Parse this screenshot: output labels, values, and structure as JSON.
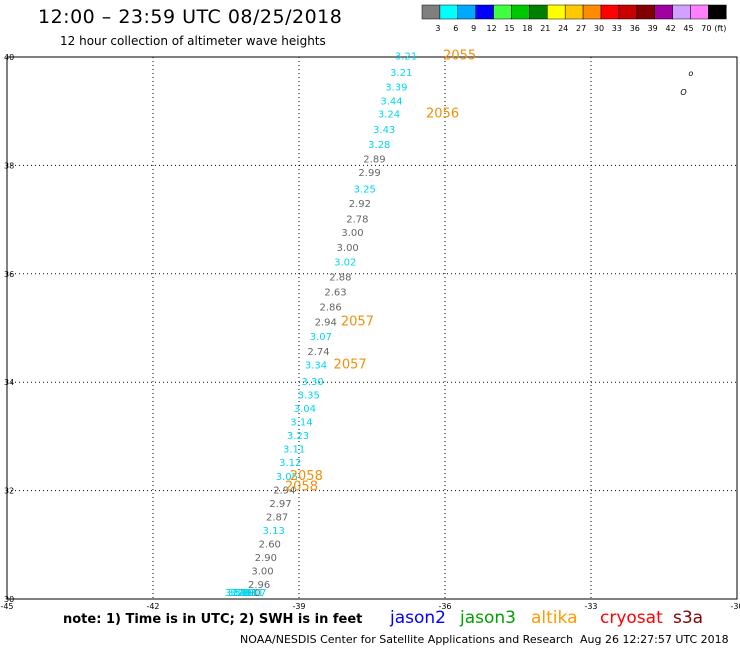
{
  "header": {
    "title": "12:00 – 23:59 UTC 08/25/2018",
    "subtitle": "12 hour collection of altimeter wave heights"
  },
  "colorbar": {
    "labels": [
      "3",
      "6",
      "9",
      "12",
      "15",
      "18",
      "21",
      "24",
      "27",
      "30",
      "33",
      "36",
      "39",
      "42",
      "45",
      "70",
      "(ft)"
    ],
    "colors": [
      "#7f7f7f",
      "#00ffff",
      "#00a8ff",
      "#0000ff",
      "#40ff40",
      "#00c800",
      "#008000",
      "#ffff00",
      "#ffc800",
      "#ff8c00",
      "#ff0000",
      "#c80000",
      "#800000",
      "#a000a0",
      "#d2a0ff",
      "#ff80ff",
      "#000000"
    ]
  },
  "chart_data": {
    "type": "scatter",
    "title": "12:00 – 23:59 UTC 08/25/2018",
    "subtitle": "12 hour collection of altimeter wave heights",
    "xlim": [
      -45,
      -30
    ],
    "ylim": [
      30,
      40
    ],
    "x_ticks": [
      "-45",
      "-42",
      "-39",
      "-36",
      "-33",
      "-30"
    ],
    "y_ticks": [
      "30",
      "32",
      "34",
      "36",
      "38",
      "40"
    ],
    "grid": true,
    "points": [
      {
        "lon": -36.8,
        "lat": 39.95,
        "swh": "3.21",
        "sat": "jason2"
      },
      {
        "lon": -36.9,
        "lat": 39.65,
        "swh": "3.21",
        "sat": "jason2"
      },
      {
        "lon": -37.0,
        "lat": 39.38,
        "swh": "3.39",
        "sat": "jason2"
      },
      {
        "lon": -37.1,
        "lat": 39.12,
        "swh": "3.44",
        "sat": "jason2"
      },
      {
        "lon": -37.15,
        "lat": 38.88,
        "swh": "3.24",
        "sat": "jason2"
      },
      {
        "lon": -37.25,
        "lat": 38.6,
        "swh": "3.43",
        "sat": "jason2"
      },
      {
        "lon": -37.35,
        "lat": 38.32,
        "swh": "3.28",
        "sat": "jason2"
      },
      {
        "lon": -37.45,
        "lat": 38.05,
        "swh": "2.89",
        "sat": "jason3"
      },
      {
        "lon": -37.55,
        "lat": 37.8,
        "swh": "2.99",
        "sat": "jason3"
      },
      {
        "lon": -37.65,
        "lat": 37.5,
        "swh": "3.25",
        "sat": "jason2"
      },
      {
        "lon": -37.75,
        "lat": 37.23,
        "swh": "2.92",
        "sat": "jason3"
      },
      {
        "lon": -37.8,
        "lat": 36.95,
        "swh": "2.78",
        "sat": "jason3"
      },
      {
        "lon": -37.9,
        "lat": 36.7,
        "swh": "3.00",
        "sat": "jason3"
      },
      {
        "lon": -38.0,
        "lat": 36.42,
        "swh": "3.00",
        "sat": "jason3"
      },
      {
        "lon": -38.05,
        "lat": 36.15,
        "swh": "3.02",
        "sat": "jason2"
      },
      {
        "lon": -38.15,
        "lat": 35.88,
        "swh": "2.88",
        "sat": "jason3"
      },
      {
        "lon": -38.25,
        "lat": 35.6,
        "swh": "2.63",
        "sat": "jason3"
      },
      {
        "lon": -38.35,
        "lat": 35.32,
        "swh": "2.86",
        "sat": "jason3"
      },
      {
        "lon": -38.45,
        "lat": 35.05,
        "swh": "2.94",
        "sat": "jason3"
      },
      {
        "lon": -38.55,
        "lat": 34.78,
        "swh": "3.07",
        "sat": "jason2"
      },
      {
        "lon": -38.6,
        "lat": 34.5,
        "swh": "2.74",
        "sat": "jason3"
      },
      {
        "lon": -38.65,
        "lat": 34.25,
        "swh": "3.34",
        "sat": "jason2"
      },
      {
        "lon": -38.72,
        "lat": 33.95,
        "swh": "3.30",
        "sat": "jason2"
      },
      {
        "lon": -38.8,
        "lat": 33.7,
        "swh": "3.35",
        "sat": "jason2"
      },
      {
        "lon": -38.88,
        "lat": 33.45,
        "swh": "3.04",
        "sat": "jason2"
      },
      {
        "lon": -38.95,
        "lat": 33.2,
        "swh": "3.14",
        "sat": "jason2"
      },
      {
        "lon": -39.02,
        "lat": 32.95,
        "swh": "3.23",
        "sat": "jason2"
      },
      {
        "lon": -39.1,
        "lat": 32.7,
        "swh": "3.11",
        "sat": "jason2"
      },
      {
        "lon": -39.18,
        "lat": 32.45,
        "swh": "3.12",
        "sat": "jason2"
      },
      {
        "lon": -39.25,
        "lat": 32.2,
        "swh": "3.05",
        "sat": "jason2"
      },
      {
        "lon": -39.3,
        "lat": 31.95,
        "swh": "2.94",
        "sat": "jason3"
      },
      {
        "lon": -39.38,
        "lat": 31.7,
        "swh": "2.97",
        "sat": "jason3"
      },
      {
        "lon": -39.45,
        "lat": 31.45,
        "swh": "2.87",
        "sat": "jason3"
      },
      {
        "lon": -39.52,
        "lat": 31.2,
        "swh": "3.13",
        "sat": "jason2"
      },
      {
        "lon": -39.6,
        "lat": 30.95,
        "swh": "2.60",
        "sat": "jason3"
      },
      {
        "lon": -39.68,
        "lat": 30.7,
        "swh": "2.90",
        "sat": "jason3"
      },
      {
        "lon": -39.75,
        "lat": 30.45,
        "swh": "3.00",
        "sat": "jason3"
      },
      {
        "lon": -39.82,
        "lat": 30.2,
        "swh": "2.96",
        "sat": "jason3"
      },
      {
        "lon": -39.9,
        "lat": 29.95,
        "swh": "3.17",
        "sat": "jason2"
      },
      {
        "lon": -39.95,
        "lat": 29.7,
        "swh": "3.11",
        "sat": "jason2"
      },
      {
        "lon": -40.02,
        "lat": 29.45,
        "swh": "2.90",
        "sat": "jason3"
      },
      {
        "lon": -40.1,
        "lat": 29.2,
        "swh": "3.33",
        "sat": "jason2"
      },
      {
        "lon": -40.15,
        "lat": 28.95,
        "swh": "3.32",
        "sat": "jason2"
      },
      {
        "lon": -40.2,
        "lat": 28.7,
        "swh": "3.49",
        "sat": "jason2"
      },
      {
        "lon": -40.25,
        "lat": 28.45,
        "swh": "3.28",
        "sat": "jason2"
      },
      {
        "lon": -40.3,
        "lat": 28.2,
        "swh": "3.54",
        "sat": "jason2"
      }
    ],
    "pass_labels": [
      {
        "text": "2055",
        "lon": -35.7,
        "lat": 39.95
      },
      {
        "text": "2056",
        "lon": -36.05,
        "lat": 38.88
      },
      {
        "text": "2057",
        "lon": -37.8,
        "lat": 35.05
      },
      {
        "text": "2057",
        "lon": -37.95,
        "lat": 34.25
      },
      {
        "text": "2058",
        "lon": -38.85,
        "lat": 32.2
      },
      {
        "text": "2058",
        "lon": -38.95,
        "lat": 32.0
      }
    ],
    "islands": [
      {
        "text": "o",
        "lon": -30.95,
        "lat": 39.65
      },
      {
        "text": "O",
        "lon": -31.1,
        "lat": 39.3
      }
    ],
    "colors": {
      "jason2": "#00d8f0",
      "jason3": "#666666",
      "pass_label": "#f0900a"
    }
  },
  "note": "note: 1) Time is in UTC; 2) SWH is in feet",
  "satellites": [
    {
      "label": "jason2",
      "color": "#0000ff"
    },
    {
      "label": "jason3",
      "color": "#00a000"
    },
    {
      "label": "altika",
      "color": "#ff9900"
    },
    {
      "label": "cryosat",
      "color": "#ff0000"
    },
    {
      "label": "s3a",
      "color": "#800000"
    }
  ],
  "footer": {
    "source": "NOAA/NESDIS Center for Satellite Applications and Research",
    "stamp": "Aug 26 12:27:57 UTC 2018"
  }
}
